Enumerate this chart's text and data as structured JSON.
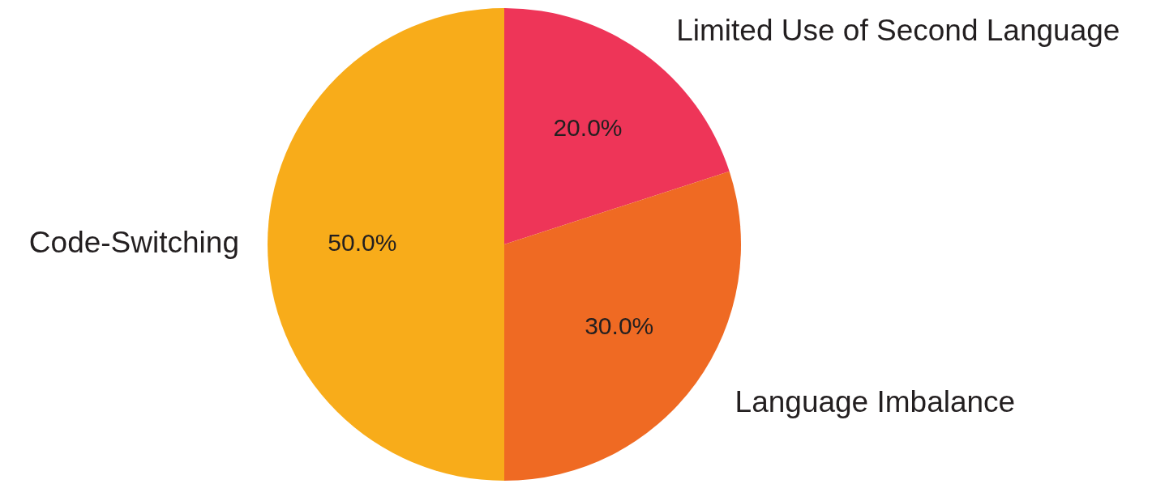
{
  "chart_data": {
    "type": "pie",
    "categories": [
      "Limited Use of Second Language",
      "Language Imbalance",
      "Code-Switching"
    ],
    "values": [
      20,
      30,
      50
    ],
    "colors": [
      "#ee3558",
      "#ef6a23",
      "#f8ac1a"
    ],
    "value_labels": [
      "20.0%",
      "30.0%",
      "50.0%"
    ]
  }
}
